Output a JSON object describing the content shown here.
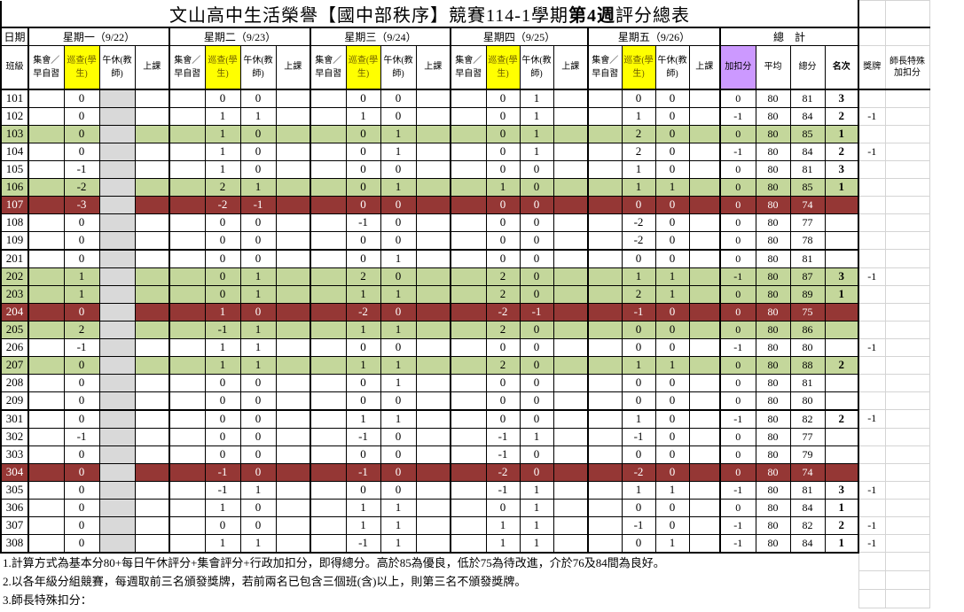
{
  "title_parts": [
    "文山高中生活榮譽【國中部秩序】競賽114-1學期",
    "第4週",
    "評分總表"
  ],
  "header": {
    "date_label": "日期",
    "class_label": "班級",
    "days": [
      "星期一（9/22）",
      "星期二（9/23）",
      "星期三（9/24）",
      "星期四（9/25）",
      "星期五（9/26）"
    ],
    "total_label": "總　計",
    "sub_cols": [
      "集會／早自習",
      "巡查(學生)",
      "午休(教師)",
      "上課"
    ],
    "adj_label": "加扣分",
    "avg_label": "平均",
    "score_label": "總分",
    "rank_label": "名次",
    "medal_label": "獎牌",
    "teacher_label": "師長特殊加扣分"
  },
  "colors": {
    "green": "#c4d79b",
    "red": "#953735",
    "patrol_yellow": "#ffff00",
    "adj_purple": "#cc99ff",
    "nap_gray": "#d9d9d9"
  },
  "rows": [
    {
      "cls": "101",
      "mon": "0",
      "tue": [
        "0",
        "0"
      ],
      "wed": [
        "0",
        "0"
      ],
      "thu": [
        "0",
        "1"
      ],
      "fri": [
        "0",
        "0"
      ],
      "adj": "0",
      "avg": "80",
      "total": "81",
      "rank": "3",
      "medal": "",
      "hl": ""
    },
    {
      "cls": "102",
      "mon": "0",
      "tue": [
        "1",
        "1"
      ],
      "wed": [
        "1",
        "0"
      ],
      "thu": [
        "0",
        "1"
      ],
      "fri": [
        "1",
        "0"
      ],
      "adj": "-1",
      "avg": "80",
      "total": "84",
      "rank": "2",
      "medal": "-1",
      "hl": ""
    },
    {
      "cls": "103",
      "mon": "0",
      "tue": [
        "1",
        "0"
      ],
      "wed": [
        "0",
        "1"
      ],
      "thu": [
        "0",
        "1"
      ],
      "fri": [
        "2",
        "0"
      ],
      "adj": "0",
      "avg": "80",
      "total": "85",
      "rank": "1",
      "medal": "",
      "hl": "green"
    },
    {
      "cls": "104",
      "mon": "0",
      "tue": [
        "1",
        "0"
      ],
      "wed": [
        "0",
        "1"
      ],
      "thu": [
        "0",
        "1"
      ],
      "fri": [
        "2",
        "0"
      ],
      "adj": "-1",
      "avg": "80",
      "total": "84",
      "rank": "2",
      "medal": "-1",
      "hl": ""
    },
    {
      "cls": "105",
      "mon": "-1",
      "tue": [
        "1",
        "0"
      ],
      "wed": [
        "0",
        "0"
      ],
      "thu": [
        "0",
        "0"
      ],
      "fri": [
        "1",
        "0"
      ],
      "adj": "0",
      "avg": "80",
      "total": "81",
      "rank": "3",
      "medal": "",
      "hl": ""
    },
    {
      "cls": "106",
      "mon": "-2",
      "tue": [
        "2",
        "1"
      ],
      "wed": [
        "0",
        "1"
      ],
      "thu": [
        "1",
        "0"
      ],
      "fri": [
        "1",
        "1"
      ],
      "adj": "0",
      "avg": "80",
      "total": "85",
      "rank": "1",
      "medal": "",
      "hl": "green"
    },
    {
      "cls": "107",
      "mon": "-3",
      "tue": [
        "-2",
        "-1"
      ],
      "wed": [
        "0",
        "0"
      ],
      "thu": [
        "0",
        "0"
      ],
      "fri": [
        "0",
        "0"
      ],
      "adj": "0",
      "avg": "80",
      "total": "74",
      "rank": "",
      "medal": "",
      "hl": "red"
    },
    {
      "cls": "108",
      "mon": "0",
      "tue": [
        "0",
        "0"
      ],
      "wed": [
        "-1",
        "0"
      ],
      "thu": [
        "0",
        "0"
      ],
      "fri": [
        "-2",
        "0"
      ],
      "adj": "0",
      "avg": "80",
      "total": "77",
      "rank": "",
      "medal": "",
      "hl": ""
    },
    {
      "cls": "109",
      "mon": "0",
      "tue": [
        "0",
        "0"
      ],
      "wed": [
        "0",
        "0"
      ],
      "thu": [
        "0",
        "0"
      ],
      "fri": [
        "-2",
        "0"
      ],
      "adj": "0",
      "avg": "80",
      "total": "78",
      "rank": "",
      "medal": "",
      "hl": ""
    },
    {
      "cls": "201",
      "mon": "0",
      "tue": [
        "0",
        "0"
      ],
      "wed": [
        "0",
        "1"
      ],
      "thu": [
        "0",
        "0"
      ],
      "fri": [
        "0",
        "0"
      ],
      "adj": "0",
      "avg": "80",
      "total": "81",
      "rank": "",
      "medal": "",
      "hl": ""
    },
    {
      "cls": "202",
      "mon": "1",
      "tue": [
        "0",
        "1"
      ],
      "wed": [
        "2",
        "0"
      ],
      "thu": [
        "2",
        "0"
      ],
      "fri": [
        "1",
        "1"
      ],
      "adj": "-1",
      "avg": "80",
      "total": "87",
      "rank": "3",
      "medal": "-1",
      "hl": "green"
    },
    {
      "cls": "203",
      "mon": "1",
      "tue": [
        "0",
        "1"
      ],
      "wed": [
        "1",
        "1"
      ],
      "thu": [
        "2",
        "0"
      ],
      "fri": [
        "2",
        "1"
      ],
      "adj": "0",
      "avg": "80",
      "total": "89",
      "rank": "1",
      "medal": "",
      "hl": "green"
    },
    {
      "cls": "204",
      "mon": "0",
      "tue": [
        "1",
        "0"
      ],
      "wed": [
        "-2",
        "0"
      ],
      "thu": [
        "-2",
        "-1"
      ],
      "fri": [
        "-1",
        "0"
      ],
      "adj": "0",
      "avg": "80",
      "total": "75",
      "rank": "",
      "medal": "",
      "hl": "red"
    },
    {
      "cls": "205",
      "mon": "2",
      "tue": [
        "-1",
        "1"
      ],
      "wed": [
        "1",
        "1"
      ],
      "thu": [
        "2",
        "0"
      ],
      "fri": [
        "0",
        "0"
      ],
      "adj": "0",
      "avg": "80",
      "total": "86",
      "rank": "",
      "medal": "",
      "hl": "green"
    },
    {
      "cls": "206",
      "mon": "-1",
      "tue": [
        "1",
        "1"
      ],
      "wed": [
        "0",
        "0"
      ],
      "thu": [
        "0",
        "0"
      ],
      "fri": [
        "0",
        "0"
      ],
      "adj": "-1",
      "avg": "80",
      "total": "80",
      "rank": "",
      "medal": "-1",
      "hl": ""
    },
    {
      "cls": "207",
      "mon": "0",
      "tue": [
        "1",
        "1"
      ],
      "wed": [
        "1",
        "1"
      ],
      "thu": [
        "2",
        "0"
      ],
      "fri": [
        "1",
        "1"
      ],
      "adj": "0",
      "avg": "80",
      "total": "88",
      "rank": "2",
      "medal": "",
      "hl": "green"
    },
    {
      "cls": "208",
      "mon": "0",
      "tue": [
        "0",
        "0"
      ],
      "wed": [
        "0",
        "1"
      ],
      "thu": [
        "0",
        "0"
      ],
      "fri": [
        "0",
        "0"
      ],
      "adj": "0",
      "avg": "80",
      "total": "81",
      "rank": "",
      "medal": "",
      "hl": ""
    },
    {
      "cls": "209",
      "mon": "0",
      "tue": [
        "0",
        "0"
      ],
      "wed": [
        "0",
        "0"
      ],
      "thu": [
        "0",
        "0"
      ],
      "fri": [
        "0",
        "0"
      ],
      "adj": "0",
      "avg": "80",
      "total": "80",
      "rank": "",
      "medal": "",
      "hl": ""
    },
    {
      "cls": "301",
      "mon": "0",
      "tue": [
        "0",
        "0"
      ],
      "wed": [
        "1",
        "1"
      ],
      "thu": [
        "0",
        "0"
      ],
      "fri": [
        "1",
        "0"
      ],
      "adj": "-1",
      "avg": "80",
      "total": "82",
      "rank": "2",
      "medal": "-1",
      "hl": ""
    },
    {
      "cls": "302",
      "mon": "-1",
      "tue": [
        "0",
        "0"
      ],
      "wed": [
        "-1",
        "0"
      ],
      "thu": [
        "-1",
        "1"
      ],
      "fri": [
        "-1",
        "0"
      ],
      "adj": "0",
      "avg": "80",
      "total": "77",
      "rank": "",
      "medal": "",
      "hl": ""
    },
    {
      "cls": "303",
      "mon": "0",
      "tue": [
        "0",
        "0"
      ],
      "wed": [
        "0",
        "0"
      ],
      "thu": [
        "-1",
        "0"
      ],
      "fri": [
        "0",
        "0"
      ],
      "adj": "0",
      "avg": "80",
      "total": "79",
      "rank": "",
      "medal": "",
      "hl": ""
    },
    {
      "cls": "304",
      "mon": "0",
      "tue": [
        "-1",
        "0"
      ],
      "wed": [
        "-1",
        "0"
      ],
      "thu": [
        "-2",
        "0"
      ],
      "fri": [
        "-2",
        "0"
      ],
      "adj": "0",
      "avg": "80",
      "total": "74",
      "rank": "",
      "medal": "",
      "hl": "red"
    },
    {
      "cls": "305",
      "mon": "0",
      "tue": [
        "-1",
        "1"
      ],
      "wed": [
        "0",
        "0"
      ],
      "thu": [
        "-1",
        "1"
      ],
      "fri": [
        "1",
        "1"
      ],
      "adj": "-1",
      "avg": "80",
      "total": "81",
      "rank": "3",
      "medal": "-1",
      "hl": ""
    },
    {
      "cls": "306",
      "mon": "0",
      "tue": [
        "1",
        "0"
      ],
      "wed": [
        "1",
        "1"
      ],
      "thu": [
        "0",
        "1"
      ],
      "fri": [
        "0",
        "0"
      ],
      "adj": "0",
      "avg": "80",
      "total": "84",
      "rank": "1",
      "medal": "",
      "hl": ""
    },
    {
      "cls": "307",
      "mon": "0",
      "tue": [
        "0",
        "0"
      ],
      "wed": [
        "1",
        "1"
      ],
      "thu": [
        "1",
        "1"
      ],
      "fri": [
        "-1",
        "0"
      ],
      "adj": "-1",
      "avg": "80",
      "total": "82",
      "rank": "2",
      "medal": "-1",
      "hl": ""
    },
    {
      "cls": "308",
      "mon": "0",
      "tue": [
        "1",
        "1"
      ],
      "wed": [
        "-1",
        "1"
      ],
      "thu": [
        "1",
        "1"
      ],
      "fri": [
        "0",
        "1"
      ],
      "adj": "-1",
      "avg": "80",
      "total": "84",
      "rank": "1",
      "medal": "-1",
      "hl": ""
    }
  ],
  "notes": [
    "1.計算方式為基本分80+每日午休評分+集會評分+行政加扣分，即得總分。高於85為優良，低於75為待改進，介於76及84間為良好。",
    "2.以各年級分組競賽，每週取前三名頒發獎牌，若前兩名已包含三個班(含)以上，則第三名不頒發獎牌。",
    "3.師長特殊扣分："
  ]
}
